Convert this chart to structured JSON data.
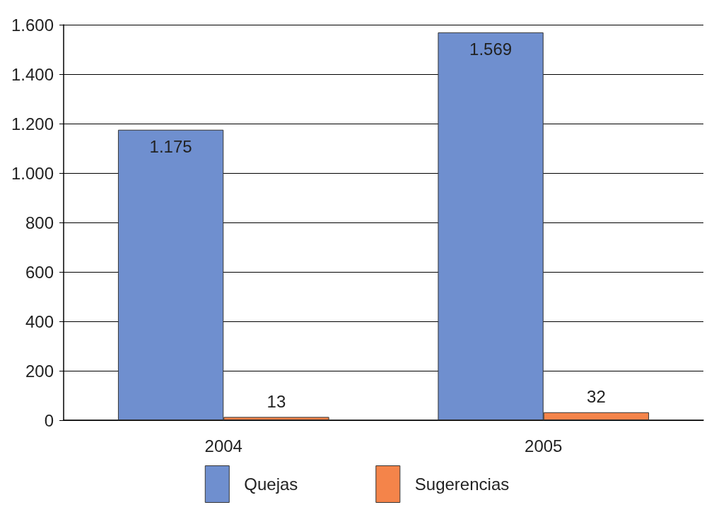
{
  "chart_data": {
    "type": "bar",
    "categories": [
      "2004",
      "2005"
    ],
    "series": [
      {
        "name": "Quejas",
        "color": "#6f8fcf",
        "values": [
          1175,
          1569
        ],
        "value_labels": [
          "1.175",
          "1.569"
        ]
      },
      {
        "name": "Sugerencias",
        "color": "#f4844a",
        "values": [
          13,
          32
        ],
        "value_labels": [
          "13",
          "32"
        ]
      }
    ],
    "ylim": [
      0,
      1600
    ],
    "yticks": [
      0,
      200,
      400,
      600,
      800,
      {
        "value": 1000,
        "label": "1.000"
      },
      {
        "value": 1200,
        "label": "1.200"
      },
      {
        "value": 1400,
        "label": "1.400"
      },
      {
        "value": 1600,
        "label": "1.600"
      }
    ],
    "grid": "y",
    "legend": "bottom"
  }
}
